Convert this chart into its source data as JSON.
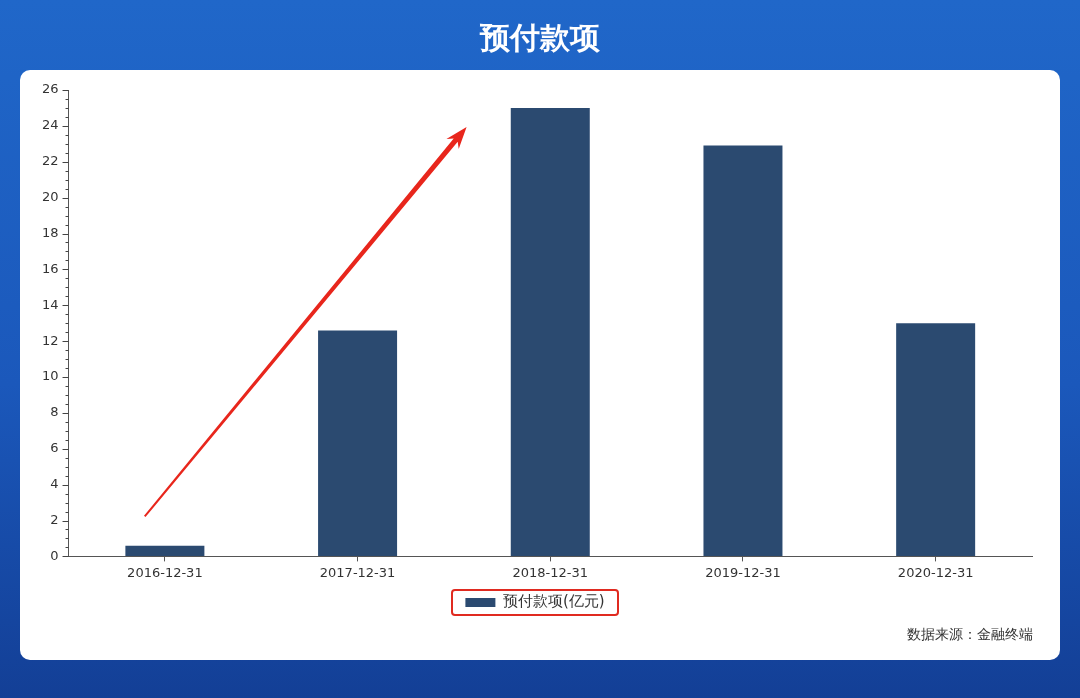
{
  "chart_data": {
    "type": "bar",
    "title": "预付款项",
    "categories": [
      "2016-12-31",
      "2017-12-31",
      "2018-12-31",
      "2019-12-31",
      "2020-12-31"
    ],
    "series": [
      {
        "name": "预付款项(亿元)",
        "color": "#2b4a70",
        "values": [
          0.6,
          12.6,
          25.0,
          22.9,
          13.0
        ]
      }
    ],
    "ylim": [
      0,
      26
    ],
    "yticks": [
      0,
      {
        "value": 0.5,
        "label": null
      },
      {
        "value": 1,
        "label": null
      },
      {
        "value": 1.5,
        "label": null
      },
      2,
      {
        "value": 2.5,
        "label": null
      },
      {
        "value": 3,
        "label": null
      },
      {
        "value": 3.5,
        "label": null
      },
      4,
      {
        "value": 4.5,
        "label": null
      },
      {
        "value": 5,
        "label": null
      },
      {
        "value": 5.5,
        "label": null
      },
      6,
      {
        "value": 6.5,
        "label": null
      },
      {
        "value": 7,
        "label": null
      },
      {
        "value": 7.5,
        "label": null
      },
      8,
      {
        "value": 8.5,
        "label": null
      },
      {
        "value": 9,
        "label": null
      },
      {
        "value": 9.5,
        "label": null
      },
      10,
      {
        "value": 10.5,
        "label": null
      },
      {
        "value": 11,
        "label": null
      },
      {
        "value": 11.5,
        "label": null
      },
      12,
      {
        "value": 12.5,
        "label": null
      },
      {
        "value": 13,
        "label": null
      },
      {
        "value": 13.5,
        "label": null
      },
      14,
      {
        "value": 14.5,
        "label": null
      },
      {
        "value": 15,
        "label": null
      },
      {
        "value": 15.5,
        "label": null
      },
      16,
      {
        "value": 16.5,
        "label": null
      },
      {
        "value": 17,
        "label": null
      },
      {
        "value": 17.5,
        "label": null
      },
      18,
      {
        "value": 18.5,
        "label": null
      },
      {
        "value": 19,
        "label": null
      },
      {
        "value": 19.5,
        "label": null
      },
      20,
      {
        "value": 20.5,
        "label": null
      },
      {
        "value": 21,
        "label": null
      },
      {
        "value": 21.5,
        "label": null
      },
      22,
      {
        "value": 22.5,
        "label": null
      },
      {
        "value": 23,
        "label": null
      },
      {
        "value": 23.5,
        "label": null
      },
      24,
      {
        "value": 24.5,
        "label": null
      },
      {
        "value": 25,
        "label": null
      },
      {
        "value": 25.5,
        "label": null
      },
      26
    ],
    "legend": "bottom",
    "annotations": [
      "数据来源：金融终端"
    ]
  }
}
